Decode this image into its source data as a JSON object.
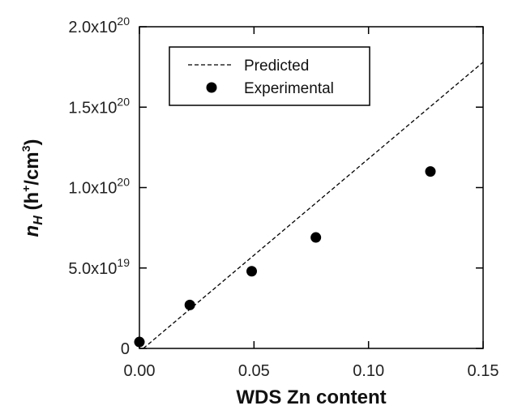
{
  "chart_data": {
    "type": "scatter",
    "title": "",
    "xlabel": "WDS Zn content",
    "ylabel": {
      "n": "n",
      "sub": "H",
      "open": " (h",
      "plus": "+",
      "slash": "/cm",
      "cube": "3",
      "close": ")"
    },
    "xlim": [
      0,
      0.15
    ],
    "ylim": [
      0,
      2e+20
    ],
    "x_ticks": [
      {
        "value": 0.0,
        "label": "0.00"
      },
      {
        "value": 0.05,
        "label": "0.05"
      },
      {
        "value": 0.1,
        "label": "0.10"
      },
      {
        "value": 0.15,
        "label": "0.15"
      }
    ],
    "y_ticks": [
      {
        "value": 0,
        "mant": "0",
        "exp": ""
      },
      {
        "value": 5e+19,
        "mant": "5.0x10",
        "exp": "19"
      },
      {
        "value": 1e+20,
        "mant": "1.0x10",
        "exp": "20"
      },
      {
        "value": 1.5e+20,
        "mant": "1.5x10",
        "exp": "20"
      },
      {
        "value": 2e+20,
        "mant": "2.0x10",
        "exp": "20"
      }
    ],
    "grid": false,
    "legend_position": "top-left",
    "series": [
      {
        "name": "Predicted",
        "kind": "dashed-line",
        "color": "#000000",
        "x": [
          0.0017,
          0.15
        ],
        "y": [
          0,
          1.78e+20
        ]
      },
      {
        "name": "Experimental",
        "kind": "points",
        "color": "#000000",
        "x": [
          0.0,
          0.022,
          0.049,
          0.077,
          0.127
        ],
        "y": [
          4e+18,
          2.7e+19,
          4.8e+19,
          6.9e+19,
          1.1e+20
        ]
      }
    ]
  }
}
